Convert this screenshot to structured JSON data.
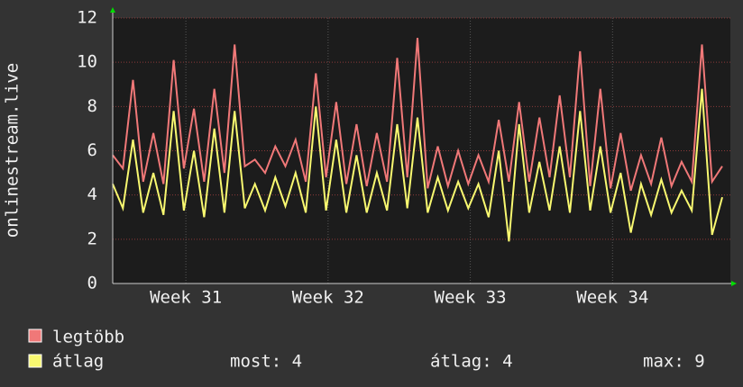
{
  "chart_data": {
    "type": "line",
    "ylabel": "onlinestream.live",
    "x": [
      0,
      0.5,
      1,
      1.5,
      2,
      2.5,
      3,
      3.5,
      4,
      4.5,
      5,
      5.5,
      6,
      6.5,
      7,
      7.5,
      8,
      8.5,
      9,
      9.5,
      10,
      10.5,
      11,
      11.5,
      12,
      12.5,
      13,
      13.5,
      14,
      14.5,
      15,
      15.5,
      16,
      16.5,
      17,
      17.5,
      18,
      18.5,
      19,
      19.5,
      20,
      20.5,
      21,
      21.5,
      22,
      22.5,
      23,
      23.5,
      24,
      24.5,
      25,
      25.5,
      26,
      26.5,
      27,
      27.5,
      28,
      28.5,
      29,
      29.5,
      30
    ],
    "series": [
      {
        "name": "legtöbb",
        "color": "#f07878",
        "values": [
          5.8,
          5.2,
          9.2,
          4.6,
          6.8,
          4.5,
          10.1,
          5.2,
          7.9,
          4.6,
          8.8,
          5.0,
          10.8,
          5.3,
          5.6,
          5.0,
          6.2,
          5.3,
          6.5,
          4.6,
          9.5,
          4.8,
          8.2,
          4.5,
          7.2,
          4.4,
          6.8,
          4.6,
          10.2,
          4.8,
          11.1,
          4.3,
          6.2,
          4.4,
          6.0,
          4.5,
          5.8,
          4.6,
          7.4,
          4.6,
          8.2,
          4.6,
          7.5,
          4.8,
          8.5,
          4.8,
          10.5,
          4.4,
          8.8,
          4.3,
          6.8,
          4.2,
          5.8,
          4.5,
          6.6,
          4.4,
          5.5,
          4.6,
          10.8,
          4.6,
          5.3
        ]
      },
      {
        "name": "átlag",
        "color": "#f8f870",
        "values": [
          4.5,
          3.4,
          6.5,
          3.2,
          5.0,
          3.1,
          7.8,
          3.3,
          6.0,
          3.0,
          7.0,
          3.2,
          7.8,
          3.4,
          4.5,
          3.3,
          4.8,
          3.5,
          5.0,
          3.2,
          8.0,
          3.3,
          6.5,
          3.2,
          5.8,
          3.2,
          5.0,
          3.3,
          7.2,
          3.4,
          7.5,
          3.2,
          4.8,
          3.3,
          4.6,
          3.4,
          4.5,
          3.0,
          6.0,
          1.9,
          7.2,
          3.2,
          5.5,
          3.3,
          6.2,
          3.2,
          7.8,
          3.3,
          6.2,
          3.2,
          5.0,
          2.3,
          4.5,
          3.1,
          4.7,
          3.2,
          4.2,
          3.3,
          8.8,
          2.2,
          3.9
        ]
      }
    ],
    "xlim": [
      0,
      30.4
    ],
    "xticks": [
      {
        "value": 3.6,
        "label": "Week 31"
      },
      {
        "value": 10.6,
        "label": "Week 32"
      },
      {
        "value": 17.6,
        "label": "Week 33"
      },
      {
        "value": 24.6,
        "label": "Week 34"
      }
    ],
    "ylim": [
      0,
      12
    ],
    "yticks": [
      0,
      2,
      4,
      6,
      8,
      10,
      12
    ],
    "grid": true,
    "stats": [
      "most: 4",
      "átlag: 4",
      "max: 9"
    ]
  }
}
